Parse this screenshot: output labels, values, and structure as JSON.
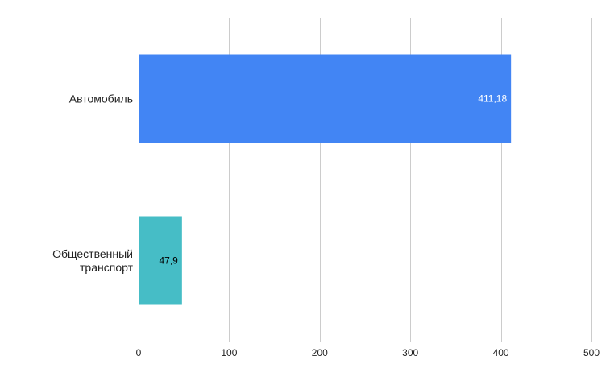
{
  "chart_data": {
    "type": "bar",
    "orientation": "horizontal",
    "categories": [
      {
        "label": "Автомобиль",
        "lines": [
          "Автомобиль"
        ]
      },
      {
        "label": "Общественный транспорт",
        "lines": [
          "Общественный",
          "транспорт"
        ]
      }
    ],
    "values": [
      411.18,
      47.9
    ],
    "value_labels": [
      "411,18",
      "47,9"
    ],
    "bar_colors": [
      "#4285f4",
      "#46bdc6"
    ],
    "value_label_colors": [
      "#ffffff",
      "#000000"
    ],
    "xlim": [
      0,
      500
    ],
    "xticks": [
      0,
      100,
      200,
      300,
      400,
      500
    ],
    "xtick_labels": [
      "0",
      "100",
      "200",
      "300",
      "400",
      "500"
    ],
    "grid": true,
    "legend": "none",
    "title": "",
    "xlabel": "",
    "ylabel": ""
  }
}
